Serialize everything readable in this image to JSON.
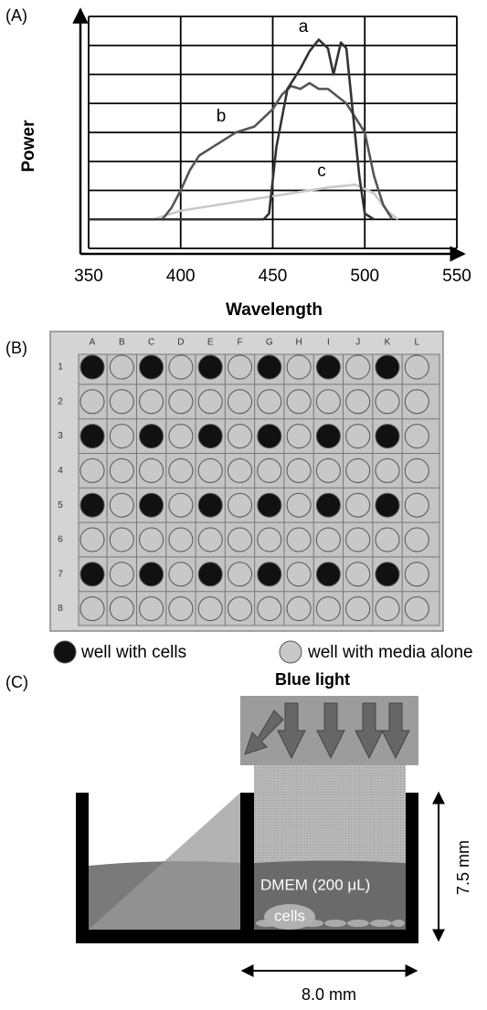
{
  "chart_data": {
    "type": "line",
    "panel_label": "(A)",
    "x_label": "Wavelength",
    "y_label": "Power",
    "xlim": [
      350,
      550
    ],
    "xticks": [
      350,
      400,
      450,
      500,
      550
    ],
    "ylim": [
      0,
      8
    ],
    "grid": true,
    "series": [
      {
        "name": "a",
        "color": "#333333",
        "x": [
          350,
          445,
          448,
          452,
          458,
          465,
          470,
          475,
          480,
          483,
          487,
          490,
          493,
          497,
          500,
          505
        ],
        "values": [
          1,
          1,
          1.2,
          3.5,
          5.5,
          6.2,
          6.8,
          7.2,
          6.9,
          6.0,
          7.1,
          6.9,
          5.0,
          2.5,
          1.2,
          1.0
        ]
      },
      {
        "name": "b",
        "color": "#555555",
        "x": [
          350,
          390,
          395,
          400,
          405,
          410,
          420,
          430,
          440,
          450,
          455,
          460,
          465,
          470,
          475,
          480,
          490,
          500,
          505,
          510,
          515
        ],
        "values": [
          1,
          1,
          1.4,
          2.0,
          2.7,
          3.2,
          3.6,
          4.0,
          4.2,
          4.8,
          5.3,
          5.6,
          5.5,
          5.7,
          5.5,
          5.5,
          5.0,
          4.0,
          2.5,
          1.5,
          1.0
        ]
      },
      {
        "name": "c",
        "color": "#c8c8c8",
        "x": [
          350,
          385,
          400,
          420,
          440,
          460,
          480,
          495,
          505,
          512,
          518
        ],
        "values": [
          1,
          1,
          1.3,
          1.5,
          1.7,
          1.9,
          2.1,
          2.2,
          1.9,
          1.3,
          1.0
        ]
      }
    ]
  },
  "panel_b": {
    "panel_label": "(B)",
    "columns": [
      "A",
      "B",
      "C",
      "D",
      "E",
      "F",
      "G",
      "H",
      "I",
      "J",
      "K",
      "L"
    ],
    "rows": [
      "1",
      "2",
      "3",
      "4",
      "5",
      "6",
      "7",
      "8"
    ],
    "cells": [
      [
        true,
        false,
        true,
        false,
        true,
        false,
        true,
        false,
        true,
        false,
        true,
        false
      ],
      [
        false,
        false,
        false,
        false,
        false,
        false,
        false,
        false,
        false,
        false,
        false,
        false
      ],
      [
        true,
        false,
        true,
        false,
        true,
        false,
        true,
        false,
        true,
        false,
        true,
        false
      ],
      [
        false,
        false,
        false,
        false,
        false,
        false,
        false,
        false,
        false,
        false,
        false,
        false
      ],
      [
        true,
        false,
        true,
        false,
        true,
        false,
        true,
        false,
        true,
        false,
        true,
        false
      ],
      [
        false,
        false,
        false,
        false,
        false,
        false,
        false,
        false,
        false,
        false,
        false,
        false
      ],
      [
        true,
        false,
        true,
        false,
        true,
        false,
        true,
        false,
        true,
        false,
        true,
        false
      ],
      [
        false,
        false,
        false,
        false,
        false,
        false,
        false,
        false,
        false,
        false,
        false,
        false
      ]
    ],
    "legend": [
      "well with cells",
      "well with media alone"
    ]
  },
  "panel_c": {
    "panel_label": "(C)",
    "light_label": "Blue light",
    "medium_label": "DMEM (200 μL)",
    "cells_label": "cells",
    "height_label": "7.5 mm",
    "width_label": "8.0 mm"
  }
}
